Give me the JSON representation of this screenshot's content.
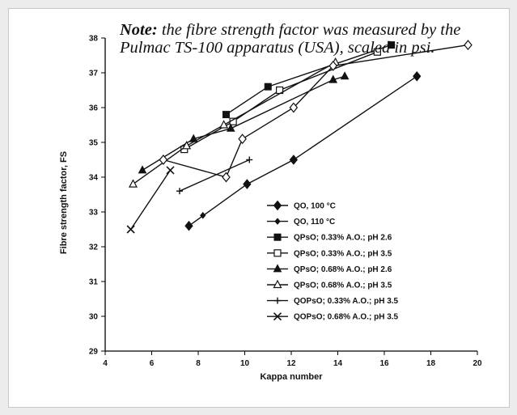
{
  "note": {
    "prefix": "Note:",
    "text": "the fibre strength factor was measured by the Pulmac TS-100 apparatus (USA), scaled in psi."
  },
  "chart_data": {
    "type": "line",
    "xlabel": "Kappa number",
    "ylabel": "Fibre strength factor, FS",
    "xlim": [
      4,
      20
    ],
    "ylim": [
      29,
      38
    ],
    "xticks": [
      4,
      6,
      8,
      10,
      12,
      14,
      16,
      18,
      20
    ],
    "yticks": [
      29,
      30,
      31,
      32,
      33,
      34,
      35,
      36,
      37,
      38
    ],
    "legend_position": "bottom-right",
    "series": [
      {
        "name": "QO, 100 °C",
        "marker": "diamond-filled",
        "points": [
          [
            7.6,
            32.6
          ],
          [
            10.1,
            33.8
          ],
          [
            12.1,
            34.5
          ],
          [
            17.4,
            36.9
          ]
        ]
      },
      {
        "name": "QO, 110 °C",
        "marker": "small-diamond",
        "points": [
          [
            8.2,
            32.9
          ]
        ]
      },
      {
        "name": "QPsO; 0.33% A.O.; pH 2.6",
        "marker": "square-filled",
        "points": [
          [
            9.2,
            35.8
          ],
          [
            11.0,
            36.6
          ],
          [
            16.3,
            37.8
          ]
        ]
      },
      {
        "name": "QPsO; 0.33% A.O.; pH 3.5",
        "marker": "square-open",
        "points": [
          [
            7.4,
            34.8
          ],
          [
            9.5,
            35.6
          ],
          [
            11.5,
            36.5
          ],
          [
            15.7,
            37.6
          ]
        ]
      },
      {
        "name": "QPsO; 0.68% A.O.; pH 2.6",
        "marker": "triangle-filled",
        "points": [
          [
            5.6,
            34.2
          ],
          [
            7.8,
            35.1
          ],
          [
            9.4,
            35.4
          ],
          [
            13.8,
            36.8
          ],
          [
            14.3,
            36.9
          ]
        ]
      },
      {
        "name": "QPsO; 0.68% A.O.; pH 3.5",
        "marker": "triangle-open",
        "points": [
          [
            5.2,
            33.8
          ],
          [
            7.5,
            34.9
          ],
          [
            9.1,
            35.5
          ],
          [
            13.9,
            37.3
          ]
        ]
      },
      {
        "name": "QOPsO; 0.33% A.O.; pH 3.5",
        "marker": "plus",
        "points": [
          [
            7.2,
            33.6
          ],
          [
            10.2,
            34.5
          ]
        ]
      },
      {
        "name": "QOPsO; 0.68% A.O.; pH 3.5",
        "marker": "cross",
        "points": [
          [
            5.1,
            32.5
          ],
          [
            6.8,
            34.2
          ]
        ]
      },
      {
        "name": "",
        "marker": "diamond-open",
        "points": [
          [
            6.5,
            34.5
          ],
          [
            9.2,
            34.0
          ],
          [
            9.9,
            35.1
          ],
          [
            12.1,
            36.0
          ],
          [
            13.8,
            37.2
          ],
          [
            19.6,
            37.8
          ]
        ]
      }
    ]
  }
}
